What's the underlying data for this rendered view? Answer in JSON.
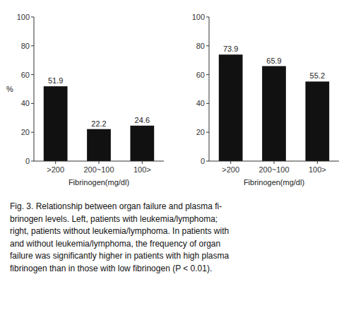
{
  "chart_data": [
    {
      "type": "bar",
      "categories": [
        ">200",
        "200~100",
        "100>"
      ],
      "values": [
        51.9,
        22.2,
        24.6
      ],
      "color": "#111111",
      "xlabel": "Fibrinogen(mg/dl)",
      "ylabel": "%",
      "ylim": [
        0,
        100
      ],
      "yticks": [
        0,
        20,
        40,
        60,
        80,
        100
      ],
      "data_labels": true
    },
    {
      "type": "bar",
      "categories": [
        ">200",
        "200~100",
        "100>"
      ],
      "values": [
        73.9,
        65.9,
        55.2
      ],
      "color": "#111111",
      "xlabel": "Fibrinogen(mg/dl)",
      "ylim": [
        0,
        100
      ],
      "yticks": [
        0,
        20,
        40,
        60,
        80,
        100
      ],
      "data_labels": true
    }
  ],
  "caption": [
    "Fig. 3.   Relationship between organ failure and plasma fi-",
    "brinogen levels. Left, patients with leukemia/lymphoma;",
    "right, patients without leukemia/lymphoma. In patients with",
    "and without leukemia/lymphoma, the frequency of organ",
    "failure was significantly higher in patients with high plasma",
    "fibrinogen than in those with low fibrinogen (P < 0.01)."
  ]
}
